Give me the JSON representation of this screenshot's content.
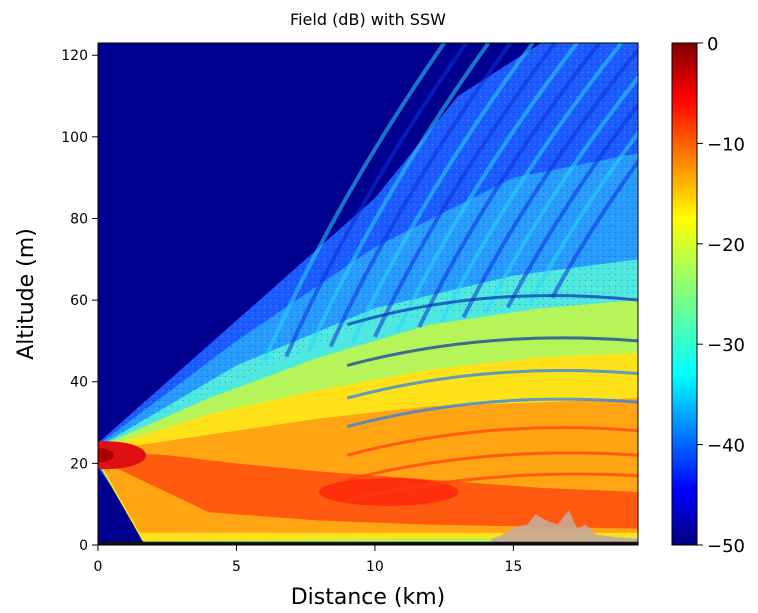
{
  "chart_data": {
    "type": "heatmap",
    "title": "Field (dB) with SSW",
    "xlabel": "Distance (km)",
    "ylabel": "Altitude (m)",
    "xlim": [
      0,
      19.5
    ],
    "ylim": [
      0,
      123
    ],
    "xticks": [
      0,
      5,
      10,
      15
    ],
    "xtick_labels": [
      "0",
      "5",
      "10",
      "15"
    ],
    "yticks": [
      0,
      20,
      40,
      60,
      80,
      100,
      120
    ],
    "ytick_labels": [
      "0",
      "20",
      "40",
      "60",
      "80",
      "100",
      "120"
    ],
    "colorbar": {
      "colormap": "jet",
      "range": [
        -50,
        0
      ],
      "ticks": [
        0,
        -10,
        -20,
        -30,
        -40,
        -50
      ],
      "tick_labels": [
        "0",
        "−10",
        "−20",
        "−30",
        "−40",
        "−50"
      ]
    },
    "source": {
      "distance_km": 0,
      "altitude_m": 22,
      "level_db": 0
    },
    "features": {
      "beam_upper_edge": [
        [
          0,
          25
        ],
        [
          5,
          55
        ],
        [
          10,
          85
        ],
        [
          13,
          110
        ],
        [
          19.5,
          123
        ]
      ],
      "ground_reflection_zone_km": [
        2,
        19.5
      ],
      "terrain_obstacle_km": [
        14.2,
        19.5
      ]
    },
    "grid": false
  }
}
